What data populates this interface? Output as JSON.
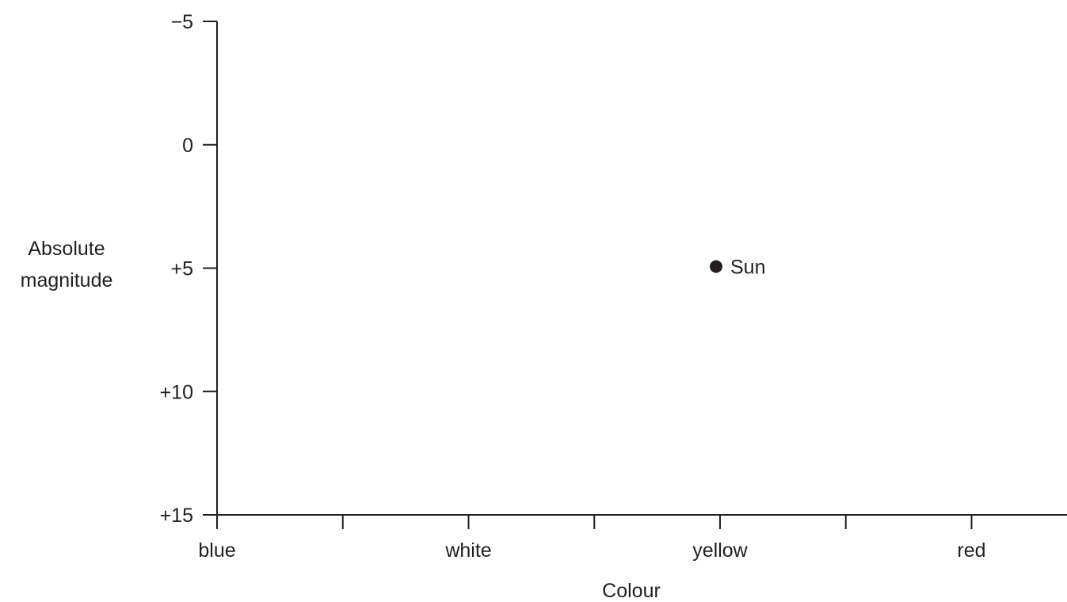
{
  "chart_data": {
    "type": "scatter",
    "title": "",
    "xlabel": "Colour",
    "ylabel": [
      "Absolute",
      "magnitude"
    ],
    "x_categories": [
      "blue",
      "white",
      "yellow",
      "red"
    ],
    "x_minor_ticks_between_categories": true,
    "y_ticks": [
      {
        "value": -5,
        "label": "−5"
      },
      {
        "value": 0,
        "label": "0"
      },
      {
        "value": 5,
        "label": "+5"
      },
      {
        "value": 10,
        "label": "+10"
      },
      {
        "value": 15,
        "label": "+15"
      }
    ],
    "ylim": [
      -5,
      15
    ],
    "y_inverted": true,
    "grid": false,
    "points": [
      {
        "x": "yellow",
        "y": 5,
        "label": "Sun"
      }
    ],
    "colors": {
      "ink": "#231f20",
      "background": "#ffffff"
    }
  }
}
